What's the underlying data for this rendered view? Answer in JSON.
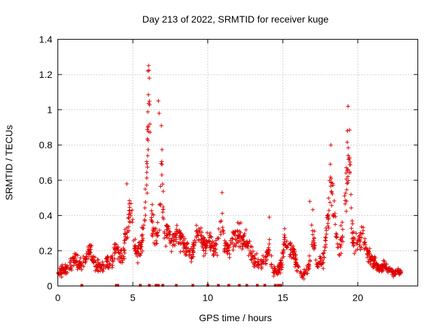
{
  "chart_data": {
    "type": "scatter",
    "title": "Day 213 of 2022, SRMTID for receiver kuge",
    "xlabel": "GPS time / hours",
    "ylabel": "SRMTID / TECUs",
    "xlim": [
      0,
      24
    ],
    "ylim": [
      0,
      1.4
    ],
    "xticks": [
      0,
      5,
      10,
      15,
      20
    ],
    "yticks": [
      0,
      0.2,
      0.4,
      0.6,
      0.8,
      1,
      1.2,
      1.4
    ],
    "ytick_labels": [
      "0",
      "0.2",
      "0.4",
      "0.6",
      "0.8",
      "1",
      "1.2",
      "1.4"
    ],
    "grid": true,
    "marker": "+",
    "series": [
      {
        "name": "SRMTID",
        "color": "#e00000",
        "envelope": {
          "x": [
            0,
            0.3,
            0.6,
            0.9,
            1.1,
            1.4,
            1.7,
            2.0,
            2.2,
            2.5,
            2.8,
            3.1,
            3.4,
            3.7,
            3.9,
            4.1,
            4.3,
            4.5,
            4.7,
            4.9,
            5.1,
            5.3,
            5.5,
            5.7,
            5.9,
            6.0,
            6.1,
            6.2,
            6.4,
            6.6,
            6.8,
            6.9,
            7.1,
            7.3,
            7.5,
            7.7,
            8.0,
            8.3,
            8.6,
            8.9,
            9.2,
            9.5,
            9.8,
            10.1,
            10.4,
            10.7,
            10.9,
            11.1,
            11.4,
            11.7,
            12.0,
            12.3,
            12.6,
            12.9,
            13.2,
            13.5,
            13.8,
            14.1,
            14.3,
            14.6,
            14.9,
            15.1,
            15.4,
            15.7,
            16.0,
            16.3,
            16.6,
            16.8,
            17.0,
            17.3,
            17.6,
            17.8,
            18.0,
            18.2,
            18.4,
            18.6,
            18.8,
            19.0,
            19.2,
            19.4,
            19.6,
            19.8,
            20.0,
            20.3,
            20.6,
            20.9,
            21.2,
            21.5,
            21.8,
            22.1,
            22.4,
            22.7,
            22.9
          ],
          "center": [
            0.07,
            0.09,
            0.1,
            0.13,
            0.15,
            0.12,
            0.14,
            0.18,
            0.2,
            0.13,
            0.1,
            0.12,
            0.14,
            0.16,
            0.22,
            0.18,
            0.15,
            0.28,
            0.4,
            0.42,
            0.22,
            0.2,
            0.22,
            0.3,
            0.55,
            0.9,
            1.15,
            0.45,
            0.3,
            0.25,
            0.45,
            0.75,
            0.3,
            0.32,
            0.28,
            0.25,
            0.3,
            0.24,
            0.22,
            0.18,
            0.28,
            0.3,
            0.22,
            0.26,
            0.2,
            0.24,
            0.4,
            0.24,
            0.2,
            0.26,
            0.3,
            0.28,
            0.24,
            0.18,
            0.14,
            0.12,
            0.15,
            0.22,
            0.1,
            0.08,
            0.12,
            0.25,
            0.22,
            0.18,
            0.1,
            0.06,
            0.08,
            0.15,
            0.3,
            0.1,
            0.14,
            0.2,
            0.4,
            0.6,
            0.45,
            0.25,
            0.2,
            0.3,
            0.55,
            0.8,
            0.35,
            0.2,
            0.25,
            0.3,
            0.2,
            0.15,
            0.12,
            0.1,
            0.12,
            0.09,
            0.07,
            0.08,
            0.07
          ],
          "spread": [
            0.04,
            0.05,
            0.05,
            0.06,
            0.06,
            0.05,
            0.05,
            0.06,
            0.06,
            0.06,
            0.06,
            0.06,
            0.06,
            0.07,
            0.08,
            0.07,
            0.08,
            0.12,
            0.14,
            0.12,
            0.1,
            0.08,
            0.08,
            0.12,
            0.3,
            0.35,
            0.12,
            0.2,
            0.1,
            0.1,
            0.25,
            0.3,
            0.15,
            0.12,
            0.1,
            0.08,
            0.1,
            0.08,
            0.07,
            0.07,
            0.1,
            0.1,
            0.08,
            0.1,
            0.08,
            0.1,
            0.14,
            0.1,
            0.08,
            0.1,
            0.1,
            0.1,
            0.08,
            0.07,
            0.06,
            0.05,
            0.06,
            0.1,
            0.05,
            0.04,
            0.06,
            0.1,
            0.08,
            0.07,
            0.05,
            0.03,
            0.04,
            0.07,
            0.15,
            0.05,
            0.06,
            0.1,
            0.18,
            0.22,
            0.18,
            0.12,
            0.1,
            0.15,
            0.3,
            0.25,
            0.15,
            0.08,
            0.1,
            0.12,
            0.08,
            0.06,
            0.05,
            0.04,
            0.05,
            0.04,
            0.03,
            0.03,
            0.03
          ]
        },
        "n_points": 1300,
        "peaks": [
          {
            "x": 6.05,
            "y": 1.25
          },
          {
            "x": 6.0,
            "y": 1.22
          },
          {
            "x": 6.1,
            "y": 1.18
          },
          {
            "x": 6.7,
            "y": 1.05
          },
          {
            "x": 6.75,
            "y": 0.98
          },
          {
            "x": 19.35,
            "y": 1.02
          },
          {
            "x": 19.3,
            "y": 0.88
          },
          {
            "x": 18.2,
            "y": 0.8
          },
          {
            "x": 4.6,
            "y": 0.58
          },
          {
            "x": 10.95,
            "y": 0.53
          },
          {
            "x": 14.1,
            "y": 0.39
          },
          {
            "x": 16.8,
            "y": 0.48
          }
        ],
        "zero_markers_x": [
          1.6,
          3.9,
          4.0,
          5.5,
          6.1,
          6.55,
          6.7,
          7.0,
          7.9,
          9.0,
          10.0,
          10.7,
          11.4,
          12.1,
          12.6,
          13.3,
          13.8,
          14.5,
          14.7,
          14.85
        ]
      }
    ]
  }
}
